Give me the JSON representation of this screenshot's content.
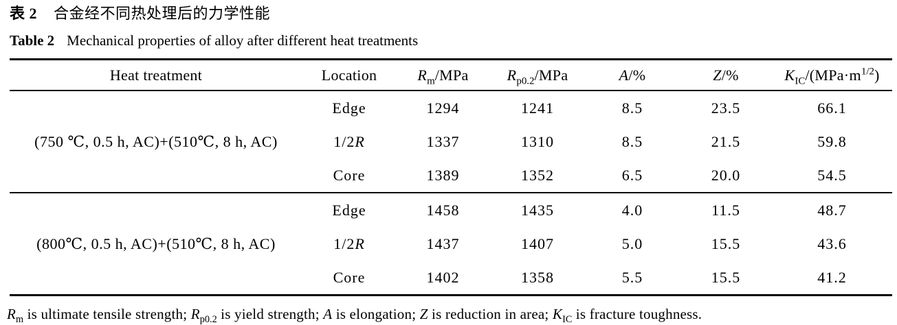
{
  "page": {
    "background_color": "#ffffff",
    "text_color": "#000000"
  },
  "captions": {
    "zh": {
      "label": "表 2",
      "title": "合金经不同热处理后的力学性能"
    },
    "en": {
      "label": "Table 2",
      "title": "Mechanical properties of alloy after different heat treatments"
    }
  },
  "table": {
    "headers": {
      "heat": "Heat treatment",
      "location": "Location",
      "rm": [
        {
          "t": "R",
          "s": "i"
        },
        {
          "t": "m",
          "s": "sub"
        },
        {
          "t": "/MPa"
        }
      ],
      "rp02": [
        {
          "t": "R",
          "s": "i"
        },
        {
          "t": "p0.2",
          "s": "sub"
        },
        {
          "t": "/MPa"
        }
      ],
      "a": [
        {
          "t": "A",
          "s": "i"
        },
        {
          "t": "/%"
        }
      ],
      "z": [
        {
          "t": "Z",
          "s": "i"
        },
        {
          "t": "/%"
        }
      ],
      "kic": [
        {
          "t": "K",
          "s": "i"
        },
        {
          "t": "IC",
          "s": "sub"
        },
        {
          "t": "/(MPa·m"
        },
        {
          "t": "1/2",
          "s": "sup"
        },
        {
          "t": ")"
        }
      ]
    },
    "groups": [
      {
        "treatment": "(750 ℃, 0.5 h, AC)+(510℃, 8 h, AC)",
        "rows": [
          {
            "location": [
              {
                "t": "Edge"
              }
            ],
            "rm": "1294",
            "rp02": "1241",
            "a": "8.5",
            "z": "23.5",
            "kic": "66.1"
          },
          {
            "location": [
              {
                "t": "1/2"
              },
              {
                "t": "R",
                "s": "i"
              }
            ],
            "rm": "1337",
            "rp02": "1310",
            "a": "8.5",
            "z": "21.5",
            "kic": "59.8"
          },
          {
            "location": [
              {
                "t": "Core"
              }
            ],
            "rm": "1389",
            "rp02": "1352",
            "a": "6.5",
            "z": "20.0",
            "kic": "54.5"
          }
        ]
      },
      {
        "treatment": "(800℃, 0.5 h, AC)+(510℃, 8 h, AC)",
        "rows": [
          {
            "location": [
              {
                "t": "Edge"
              }
            ],
            "rm": "1458",
            "rp02": "1435",
            "a": "4.0",
            "z": "11.5",
            "kic": "48.7"
          },
          {
            "location": [
              {
                "t": "1/2"
              },
              {
                "t": "R",
                "s": "i"
              }
            ],
            "rm": "1437",
            "rp02": "1407",
            "a": "5.0",
            "z": "15.5",
            "kic": "43.6"
          },
          {
            "location": [
              {
                "t": "Core"
              }
            ],
            "rm": "1402",
            "rp02": "1358",
            "a": "5.5",
            "z": "15.5",
            "kic": "41.2"
          }
        ]
      }
    ]
  },
  "footnote": [
    {
      "t": "R",
      "s": "i"
    },
    {
      "t": "m",
      "s": "sub"
    },
    {
      "t": " is ultimate tensile strength; "
    },
    {
      "t": "R",
      "s": "i"
    },
    {
      "t": "p0.2",
      "s": "sub"
    },
    {
      "t": " is yield strength; "
    },
    {
      "t": "A",
      "s": "i"
    },
    {
      "t": " is elongation; "
    },
    {
      "t": "Z",
      "s": "i"
    },
    {
      "t": " is reduction in area; "
    },
    {
      "t": "K",
      "s": "i"
    },
    {
      "t": "IC",
      "s": "sub"
    },
    {
      "t": " is fracture toughness."
    }
  ]
}
